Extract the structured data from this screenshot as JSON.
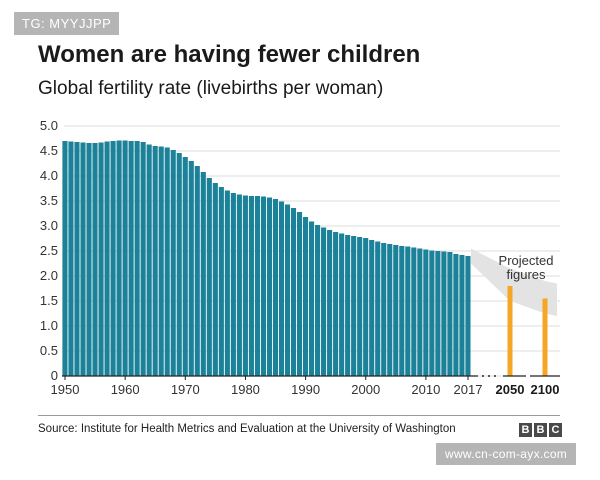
{
  "watermark_top": "TG: MYYJJPP",
  "watermark_bottom": "www.cn-com-ayx.com",
  "chart_data": {
    "type": "bar",
    "title": "Women are having fewer children",
    "subtitle": "Global fertility rate (livebirths per woman)",
    "xlabel": "",
    "ylabel": "",
    "ylim": [
      0,
      5.0
    ],
    "y_ticks": [
      "0",
      "0.5",
      "1.0",
      "1.5",
      "2.0",
      "2.5",
      "3.0",
      "3.5",
      "4.0",
      "4.5",
      "5.0"
    ],
    "x_ticks": [
      "1950",
      "1960",
      "1970",
      "1980",
      "1990",
      "2000",
      "2010",
      "2017"
    ],
    "projected_ticks": [
      "2050",
      "2100"
    ],
    "historical": {
      "years": [
        1950,
        1951,
        1952,
        1953,
        1954,
        1955,
        1956,
        1957,
        1958,
        1959,
        1960,
        1961,
        1962,
        1963,
        1964,
        1965,
        1966,
        1967,
        1968,
        1969,
        1970,
        1971,
        1972,
        1973,
        1974,
        1975,
        1976,
        1977,
        1978,
        1979,
        1980,
        1981,
        1982,
        1983,
        1984,
        1985,
        1986,
        1987,
        1988,
        1989,
        1990,
        1991,
        1992,
        1993,
        1994,
        1995,
        1996,
        1997,
        1998,
        1999,
        2000,
        2001,
        2002,
        2003,
        2004,
        2005,
        2006,
        2007,
        2008,
        2009,
        2010,
        2011,
        2012,
        2013,
        2014,
        2015,
        2016,
        2017
      ],
      "values": [
        4.7,
        4.69,
        4.68,
        4.67,
        4.66,
        4.66,
        4.67,
        4.69,
        4.7,
        4.71,
        4.71,
        4.7,
        4.7,
        4.68,
        4.63,
        4.6,
        4.59,
        4.57,
        4.52,
        4.46,
        4.38,
        4.3,
        4.2,
        4.08,
        3.96,
        3.86,
        3.78,
        3.71,
        3.66,
        3.63,
        3.61,
        3.6,
        3.6,
        3.59,
        3.57,
        3.54,
        3.49,
        3.43,
        3.36,
        3.28,
        3.18,
        3.09,
        3.02,
        2.97,
        2.92,
        2.88,
        2.85,
        2.82,
        2.8,
        2.78,
        2.76,
        2.72,
        2.69,
        2.66,
        2.64,
        2.62,
        2.6,
        2.59,
        2.57,
        2.55,
        2.53,
        2.51,
        2.5,
        2.49,
        2.48,
        2.44,
        2.42,
        2.4
      ]
    },
    "projected": {
      "years": [
        2050,
        2100
      ],
      "values": [
        1.8,
        1.55
      ]
    },
    "annotation": [
      "Projected",
      "figures"
    ],
    "colors": {
      "historical": "#1c8299",
      "projected": "#f5a623",
      "band": "#e3e3e3",
      "grid": "#dddddd"
    }
  },
  "source": "Source: Institute for Health Metrics and Evaluation at the University of Washington",
  "logo": [
    "B",
    "B",
    "C"
  ]
}
